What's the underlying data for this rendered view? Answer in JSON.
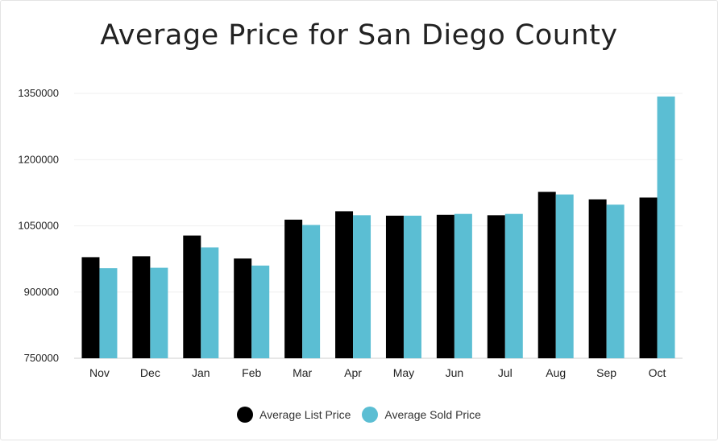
{
  "chart_data": {
    "type": "bar",
    "title": "Average Price for San Diego County",
    "xlabel": "",
    "ylabel": "",
    "categories": [
      "Nov",
      "Dec",
      "Jan",
      "Feb",
      "Mar",
      "Apr",
      "May",
      "Jun",
      "Jul",
      "Aug",
      "Sep",
      "Oct"
    ],
    "series": [
      {
        "name": "Average List Price",
        "color": "#000000",
        "values": [
          979000,
          981000,
          1028000,
          976000,
          1064000,
          1083000,
          1073000,
          1075000,
          1074000,
          1127000,
          1110000,
          1114000
        ]
      },
      {
        "name": "Average Sold Price",
        "color": "#5bbed3",
        "values": [
          954000,
          955000,
          1001000,
          960000,
          1052000,
          1074000,
          1073000,
          1077000,
          1077000,
          1121000,
          1098000,
          1343000
        ]
      }
    ],
    "ylim": [
      750000,
      1350000
    ],
    "yticks": [
      "1350000",
      "1200000",
      "1050000",
      "900000",
      "750000"
    ],
    "grid": true,
    "legend_position": "bottom"
  }
}
